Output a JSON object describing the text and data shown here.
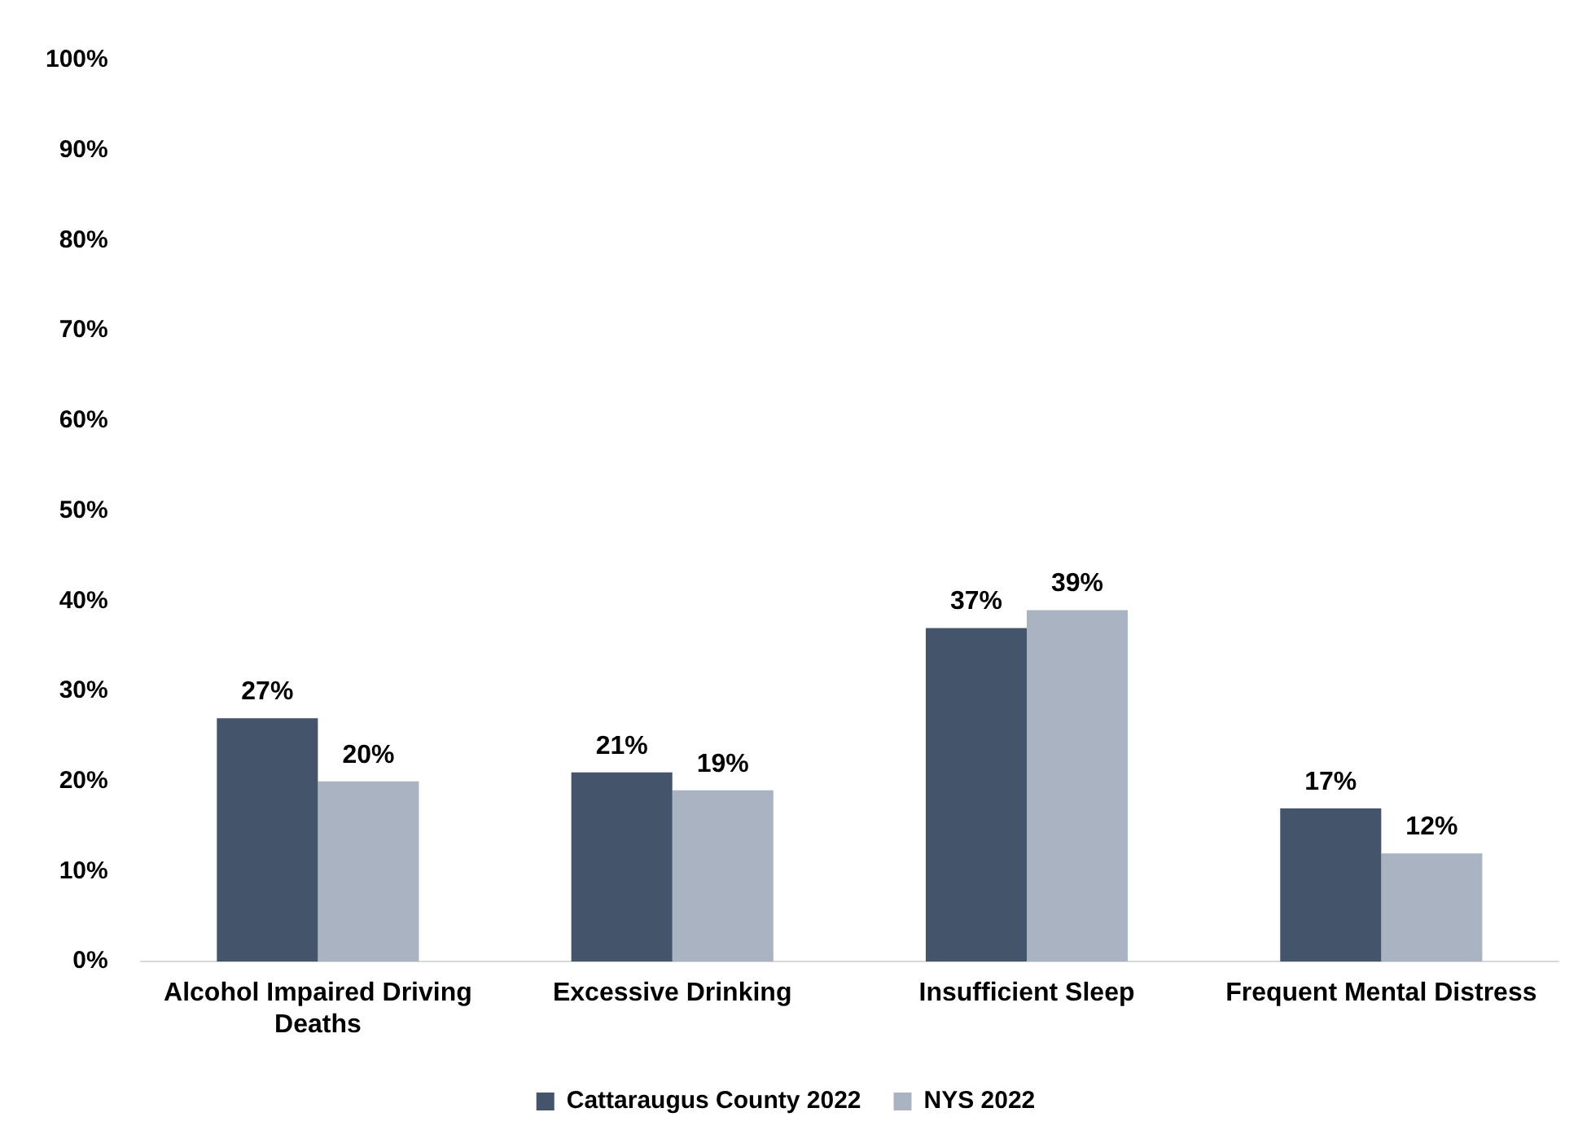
{
  "chart_data": {
    "type": "bar",
    "categories": [
      "Alcohol Impaired Driving Deaths",
      "Excessive Drinking",
      "Insufficient Sleep",
      "Frequent Mental Distress"
    ],
    "series": [
      {
        "name": "Cattaraugus County 2022",
        "color": "#44546a",
        "values": [
          27,
          21,
          37,
          17
        ],
        "value_labels": [
          "27%",
          "21%",
          "37%",
          "17%"
        ]
      },
      {
        "name": "NYS 2022",
        "color": "#aab3c2",
        "values": [
          20,
          19,
          39,
          12
        ],
        "value_labels": [
          "20%",
          "19%",
          "39%",
          "12%"
        ]
      }
    ],
    "ylim": [
      0,
      100
    ],
    "yticks": [
      {
        "value": 0,
        "label": "0%"
      },
      {
        "value": 10,
        "label": "10%"
      },
      {
        "value": 20,
        "label": "20%"
      },
      {
        "value": 30,
        "label": "30%"
      },
      {
        "value": 40,
        "label": "40%"
      },
      {
        "value": 50,
        "label": "50%"
      },
      {
        "value": 60,
        "label": "60%"
      },
      {
        "value": 70,
        "label": "70%"
      },
      {
        "value": 80,
        "label": "80%"
      },
      {
        "value": 90,
        "label": "90%"
      },
      {
        "value": 100,
        "label": "100%"
      }
    ],
    "grid": false,
    "legend": "bottom"
  }
}
